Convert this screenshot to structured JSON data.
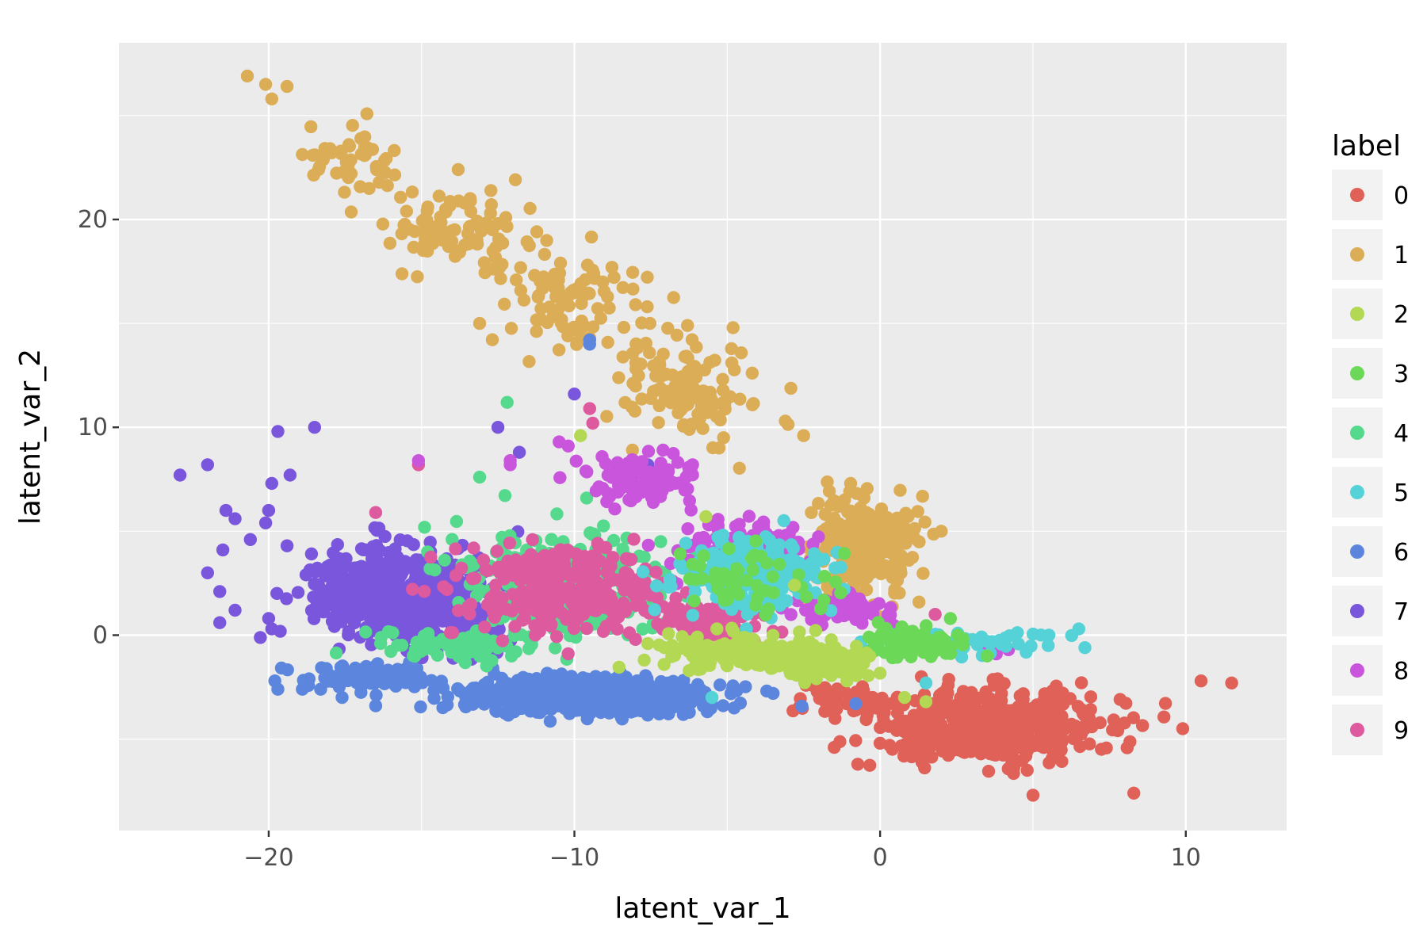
{
  "chart_data": {
    "type": "scatter",
    "xlabel": "latent_var_1",
    "ylabel": "latent_var_2",
    "xlim": [
      -24.9,
      13.3
    ],
    "ylim": [
      -9.4,
      28.5
    ],
    "x_ticks": [
      -20,
      -10,
      0,
      10
    ],
    "x_tick_labels": [
      "−20",
      "−10",
      "0",
      "10"
    ],
    "y_ticks": [
      0,
      10,
      20
    ],
    "y_tick_labels": [
      "0",
      "10",
      "20"
    ],
    "grid": true,
    "background": "#ebebeb",
    "legend": {
      "title": "label",
      "position": "right"
    },
    "series": [
      {
        "name": "0",
        "color": "#e06158",
        "clusters": [
          {
            "center": [
              3.5,
              -4.4
            ],
            "spread": [
              3.2,
              1.4
            ],
            "count": 480
          },
          {
            "center": [
              -1.2,
              -3.0
            ],
            "spread": [
              1.2,
              0.6
            ],
            "count": 40
          }
        ],
        "points": [
          [
            11.5,
            -2.3
          ],
          [
            10.5,
            -2.2
          ],
          [
            9.9,
            -4.5
          ],
          [
            8.3,
            -7.6
          ],
          [
            5.0,
            -7.7
          ],
          [
            -1.5,
            -5.4
          ],
          [
            -0.0,
            -5.2
          ]
        ]
      },
      {
        "name": "1",
        "color": "#dcad57",
        "clusters": [
          {
            "center": [
              -0.6,
              4.3
            ],
            "spread": [
              1.3,
              1.9
            ],
            "count": 330
          },
          {
            "center": [
              -6.5,
              12.0
            ],
            "spread": [
              1.8,
              2.2
            ],
            "count": 130
          },
          {
            "center": [
              -10.0,
              16.0
            ],
            "spread": [
              1.8,
              1.8
            ],
            "count": 90
          },
          {
            "center": [
              -13.8,
              19.3
            ],
            "spread": [
              1.8,
              1.6
            ],
            "count": 95
          },
          {
            "center": [
              -17.2,
              22.8
            ],
            "spread": [
              1.4,
              1.3
            ],
            "count": 50
          }
        ],
        "points": [
          [
            -20.7,
            26.9
          ],
          [
            -20.1,
            26.5
          ],
          [
            -19.4,
            26.4
          ],
          [
            -19.9,
            25.8
          ],
          [
            -13.8,
            22.4
          ],
          [
            -12.5,
            19.8
          ],
          [
            -6.3,
            14.9
          ],
          [
            -8.0,
            15.9
          ],
          [
            -13.1,
            15.0
          ],
          [
            -3.1,
            10.3
          ],
          [
            -2.5,
            9.6
          ],
          [
            2.0,
            5.0
          ],
          [
            -8.1,
            8.9
          ]
        ]
      },
      {
        "name": "2",
        "color": "#b3d853",
        "clusters": [
          {
            "center": [
              -1.8,
              -1.3
            ],
            "spread": [
              1.1,
              0.7
            ],
            "count": 140
          },
          {
            "center": [
              -4.8,
              -0.9
            ],
            "spread": [
              2.2,
              0.8
            ],
            "count": 110
          }
        ],
        "points": [
          [
            -9.8,
            9.6
          ],
          [
            1.5,
            -3.2
          ],
          [
            0.8,
            -3.0
          ],
          [
            -5.7,
            5.7
          ],
          [
            -2.8,
            2.4
          ]
        ]
      },
      {
        "name": "3",
        "color": "#6bd858",
        "clusters": [
          {
            "center": [
              1.2,
              -0.4
            ],
            "spread": [
              1.3,
              0.5
            ],
            "count": 110
          },
          {
            "center": [
              -4.5,
              2.5
            ],
            "spread": [
              2.2,
              1.4
            ],
            "count": 50
          }
        ],
        "points": [
          [
            -4.2,
            3.7
          ],
          [
            -3.9,
            3.8
          ],
          [
            3.5,
            -1.0
          ],
          [
            2.3,
            0.8
          ]
        ]
      },
      {
        "name": "4",
        "color": "#55d98d",
        "clusters": [
          {
            "center": [
              -10.2,
              2.4
            ],
            "spread": [
              2.8,
              2.0
            ],
            "count": 360
          },
          {
            "center": [
              -13.5,
              -0.5
            ],
            "spread": [
              2.0,
              0.6
            ],
            "count": 80
          }
        ],
        "points": [
          [
            -12.2,
            11.2
          ],
          [
            -13.1,
            7.6
          ],
          [
            -9.6,
            6.6
          ],
          [
            -15.2,
            -0.7
          ]
        ]
      },
      {
        "name": "5",
        "color": "#55d2d7",
        "clusters": [
          {
            "center": [
              -4.0,
              2.8
            ],
            "spread": [
              2.0,
              1.3
            ],
            "count": 230
          },
          {
            "center": [
              2.5,
              -0.3
            ],
            "spread": [
              2.2,
              0.4
            ],
            "count": 60
          }
        ],
        "points": [
          [
            6.5,
            0.3
          ],
          [
            6.7,
            -0.6
          ],
          [
            5.5,
            -0.5
          ],
          [
            -5.5,
            -3.0
          ],
          [
            1.5,
            -2.3
          ],
          [
            -2.8,
            3.6
          ]
        ]
      },
      {
        "name": "6",
        "color": "#5c86dd",
        "clusters": [
          {
            "center": [
              -9.5,
              -2.9
            ],
            "spread": [
              3.3,
              0.65
            ],
            "count": 720
          },
          {
            "center": [
              -16.8,
              -2.0
            ],
            "spread": [
              1.6,
              0.45
            ],
            "count": 90
          }
        ],
        "points": [
          [
            -19.8,
            -2.2
          ],
          [
            -19.7,
            -2.6
          ],
          [
            -18.9,
            -2.6
          ],
          [
            -18.3,
            -2.6
          ],
          [
            -17.6,
            -3.0
          ],
          [
            -16.5,
            -3.4
          ],
          [
            -9.5,
            14.0
          ],
          [
            -9.5,
            14.2
          ],
          [
            -3.5,
            -2.8
          ],
          [
            -0.8,
            -3.3
          ]
        ]
      },
      {
        "name": "7",
        "color": "#7a56dd",
        "clusters": [
          {
            "center": [
              -16.0,
              2.0
            ],
            "spread": [
              2.3,
              2.0
            ],
            "count": 380
          },
          {
            "center": [
              -13.5,
              1.5
            ],
            "spread": [
              1.6,
              1.8
            ],
            "count": 140
          }
        ],
        "points": [
          [
            -22.9,
            7.7
          ],
          [
            -22.0,
            8.2
          ],
          [
            -21.4,
            6.0
          ],
          [
            -21.1,
            5.6
          ],
          [
            -20.6,
            4.6
          ],
          [
            -21.5,
            4.1
          ],
          [
            -22.0,
            3.0
          ],
          [
            -21.6,
            2.1
          ],
          [
            -21.1,
            1.2
          ],
          [
            -21.6,
            0.6
          ],
          [
            -19.9,
            0.3
          ],
          [
            -20.0,
            0.8
          ],
          [
            -20.1,
            5.4
          ],
          [
            -20.0,
            6.0
          ],
          [
            -19.9,
            7.3
          ],
          [
            -19.3,
            7.7
          ],
          [
            -19.4,
            4.3
          ],
          [
            -19.7,
            9.8
          ],
          [
            -18.5,
            10.0
          ],
          [
            -12.5,
            10.0
          ],
          [
            -11.8,
            8.8
          ],
          [
            -7.6,
            8.2
          ],
          [
            -10.0,
            11.6
          ]
        ]
      },
      {
        "name": "8",
        "color": "#c955dd",
        "clusters": [
          {
            "center": [
              -7.8,
              7.5
            ],
            "spread": [
              1.6,
              0.9
            ],
            "count": 100
          },
          {
            "center": [
              -4.5,
              4.2
            ],
            "spread": [
              1.8,
              1.0
            ],
            "count": 100
          },
          {
            "center": [
              -1.2,
              1.2
            ],
            "spread": [
              1.3,
              0.6
            ],
            "count": 70
          }
        ],
        "points": [
          [
            -12.1,
            8.2
          ],
          [
            -12.1,
            8.4
          ],
          [
            -10.5,
            9.3
          ],
          [
            -10.2,
            9.1
          ],
          [
            -7.1,
            8.9
          ],
          [
            3.5,
            -0.8
          ],
          [
            3.8,
            -0.9
          ],
          [
            4.2,
            -0.7
          ],
          [
            -15.1,
            8.4
          ]
        ]
      },
      {
        "name": "9",
        "color": "#de5a9e",
        "clusters": [
          {
            "center": [
              -10.2,
              2.2
            ],
            "spread": [
              2.8,
              1.7
            ],
            "count": 300
          },
          {
            "center": [
              -5.5,
              0.8
            ],
            "spread": [
              1.6,
              0.9
            ],
            "count": 80
          }
        ],
        "points": [
          [
            -9.4,
            10.2
          ],
          [
            -15.1,
            8.2
          ],
          [
            -16.5,
            5.9
          ],
          [
            1.8,
            1.0
          ],
          [
            -9.5,
            10.9
          ]
        ]
      }
    ]
  }
}
